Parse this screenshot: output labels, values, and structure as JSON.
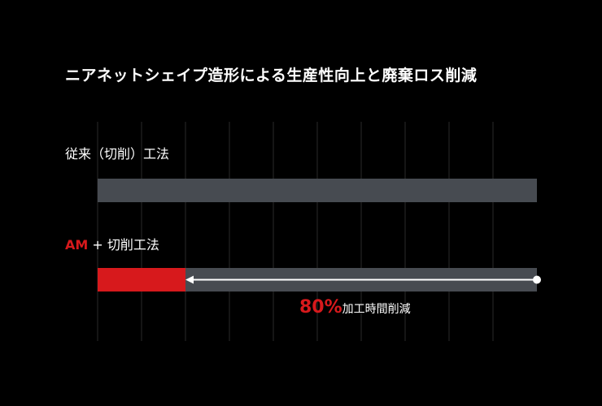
{
  "colors": {
    "background": "#000000",
    "bar": "#474b51",
    "accent": "#d7191c",
    "grid": "#2a2a2a",
    "text": "#ffffff"
  },
  "chart_data": {
    "type": "bar",
    "orientation": "horizontal",
    "title": "ニアネットシェイプ造形による生産性向上と廃棄ロス削減",
    "categories": [
      "従来（切削）工法",
      "AM + 切削工法"
    ],
    "series": [
      {
        "values": [
          100,
          20
        ]
      }
    ],
    "xlim": [
      0,
      100
    ],
    "grid": true,
    "grid_divisions": 10,
    "category_parts": [
      {
        "text": "従来（切削）工法"
      },
      {
        "accent": "AM",
        "text": " + 切削工法"
      }
    ],
    "annotation": {
      "value": "80%",
      "text": "加工時間削減",
      "from": 100,
      "to": 20
    }
  }
}
